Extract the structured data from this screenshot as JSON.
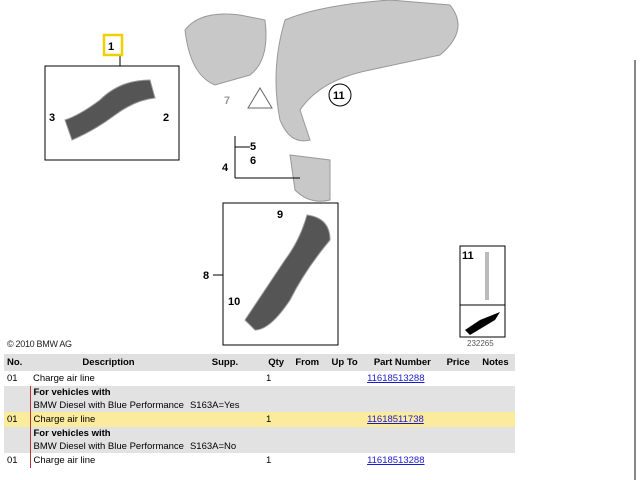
{
  "diagram": {
    "callouts": [
      "1",
      "2",
      "3",
      "4",
      "5",
      "6",
      "7",
      "8",
      "9",
      "10",
      "11"
    ],
    "inset_label": "11",
    "copyright": "© 2010 BMW AG",
    "image_number": "232265"
  },
  "table": {
    "headers": [
      "No.",
      "Description",
      "Supp.",
      "Qty",
      "From",
      "Up To",
      "Part Number",
      "Price",
      "Notes"
    ],
    "rows": [
      {
        "no": "01",
        "desc": "Charge air line",
        "qty": "1",
        "part": "11618513288"
      },
      {
        "cond_title": "For vehicles with",
        "cond_text": "BMW Diesel with Blue Performance",
        "supp": "S163A=Yes"
      },
      {
        "no": "01",
        "desc": "Charge air line",
        "qty": "1",
        "part": "11618511738"
      },
      {
        "cond_title": "For vehicles with",
        "cond_text": "BMW Diesel with Blue Performance",
        "supp": "S163A=No"
      },
      {
        "no": "01",
        "desc": "Charge air line",
        "qty": "1",
        "part": "11618513288"
      }
    ]
  },
  "colors": {
    "highlight": "#fbeb9c",
    "link": "#1a1ad0",
    "callout_highlight": "#f0d000"
  }
}
